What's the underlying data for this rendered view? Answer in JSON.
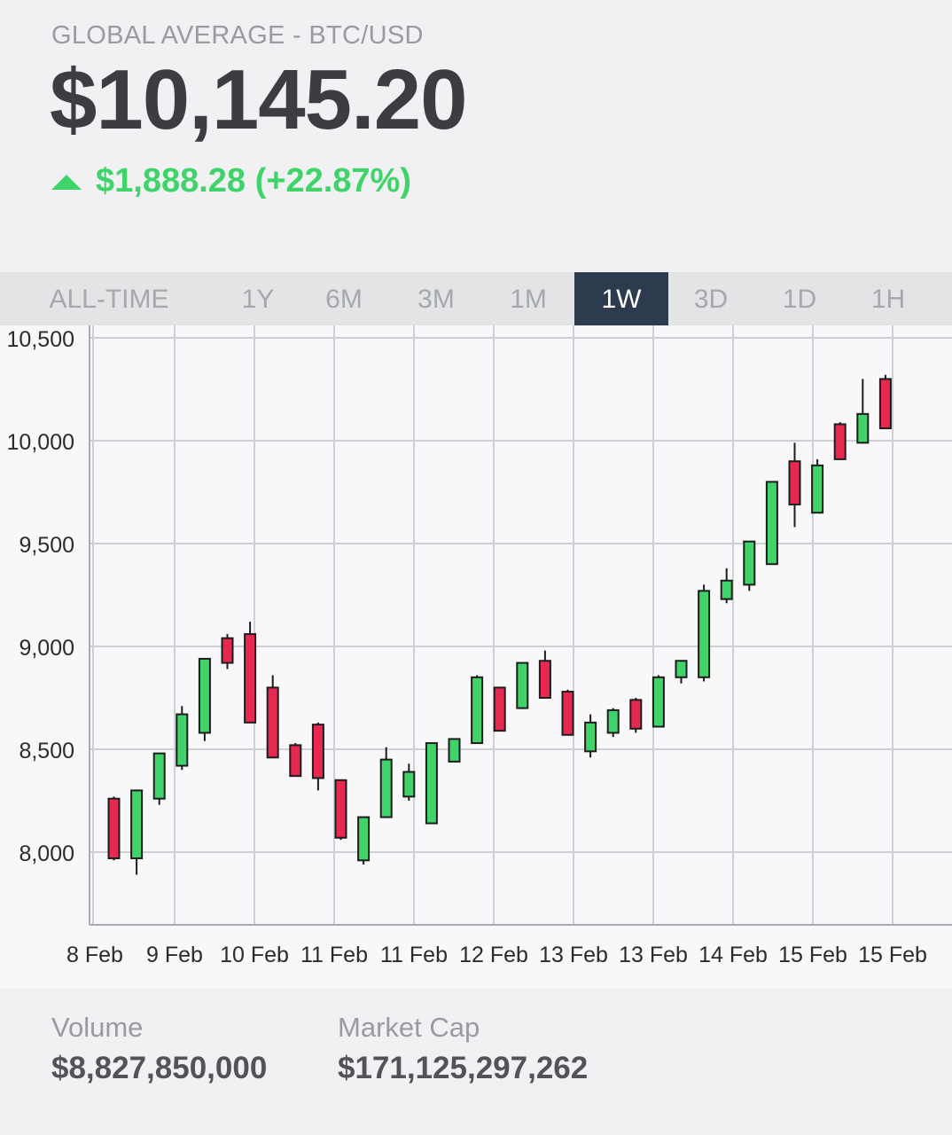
{
  "header": {
    "pair_label": "GLOBAL AVERAGE - BTC/USD",
    "price": "$10,145.20",
    "change": "$1,888.28 (+22.87%)",
    "change_color": "#3fd36a"
  },
  "tabs": [
    {
      "label": "ALL-TIME",
      "active": false
    },
    {
      "label": "1Y",
      "active": false
    },
    {
      "label": "6M",
      "active": false
    },
    {
      "label": "3M",
      "active": false
    },
    {
      "label": "1M",
      "active": false
    },
    {
      "label": "1W",
      "active": true
    },
    {
      "label": "3D",
      "active": false
    },
    {
      "label": "1D",
      "active": false
    },
    {
      "label": "1H",
      "active": false
    }
  ],
  "chart_data": {
    "type": "candlestick",
    "ylim": [
      7750,
      10550
    ],
    "yticks": [
      {
        "value": 8000,
        "label": "8,000"
      },
      {
        "value": 8500,
        "label": "8,500"
      },
      {
        "value": 9000,
        "label": "9,000"
      },
      {
        "value": 9500,
        "label": "9,500"
      },
      {
        "value": 10000,
        "label": "10,000"
      },
      {
        "value": 10500,
        "label": "10,500"
      }
    ],
    "xticks": [
      "8 Feb",
      "9 Feb",
      "10 Feb",
      "11 Feb",
      "11 Feb",
      "12 Feb",
      "13 Feb",
      "13 Feb",
      "14 Feb",
      "15 Feb",
      "15 Feb"
    ],
    "grid": true,
    "up_color": "#3fd36a",
    "down_color": "#e8294f",
    "candles": [
      {
        "open": 8260,
        "close": 7970,
        "high": 8270,
        "low": 7960
      },
      {
        "open": 7970,
        "close": 8300,
        "high": 8300,
        "low": 7890
      },
      {
        "open": 8260,
        "close": 8480,
        "high": 8480,
        "low": 8230
      },
      {
        "open": 8420,
        "close": 8670,
        "high": 8710,
        "low": 8400
      },
      {
        "open": 8580,
        "close": 8940,
        "high": 8940,
        "low": 8540
      },
      {
        "open": 9040,
        "close": 8920,
        "high": 9060,
        "low": 8890
      },
      {
        "open": 9060,
        "close": 8630,
        "high": 9120,
        "low": 8630
      },
      {
        "open": 8800,
        "close": 8460,
        "high": 8860,
        "low": 8460
      },
      {
        "open": 8520,
        "close": 8370,
        "high": 8530,
        "low": 8370
      },
      {
        "open": 8620,
        "close": 8360,
        "high": 8630,
        "low": 8300
      },
      {
        "open": 8350,
        "close": 8070,
        "high": 8350,
        "low": 8060
      },
      {
        "open": 7960,
        "close": 8170,
        "high": 8170,
        "low": 7940
      },
      {
        "open": 8170,
        "close": 8450,
        "high": 8510,
        "low": 8170
      },
      {
        "open": 8270,
        "close": 8390,
        "high": 8430,
        "low": 8250
      },
      {
        "open": 8140,
        "close": 8530,
        "high": 8530,
        "low": 8140
      },
      {
        "open": 8440,
        "close": 8550,
        "high": 8550,
        "low": 8440
      },
      {
        "open": 8530,
        "close": 8850,
        "high": 8860,
        "low": 8530
      },
      {
        "open": 8800,
        "close": 8590,
        "high": 8800,
        "low": 8590
      },
      {
        "open": 8700,
        "close": 8920,
        "high": 8920,
        "low": 8700
      },
      {
        "open": 8930,
        "close": 8750,
        "high": 8980,
        "low": 8750
      },
      {
        "open": 8780,
        "close": 8570,
        "high": 8790,
        "low": 8570
      },
      {
        "open": 8490,
        "close": 8630,
        "high": 8670,
        "low": 8460
      },
      {
        "open": 8580,
        "close": 8690,
        "high": 8700,
        "low": 8560
      },
      {
        "open": 8740,
        "close": 8600,
        "high": 8750,
        "low": 8580
      },
      {
        "open": 8610,
        "close": 8850,
        "high": 8860,
        "low": 8610
      },
      {
        "open": 8850,
        "close": 8930,
        "high": 8930,
        "low": 8820
      },
      {
        "open": 8850,
        "close": 9270,
        "high": 9300,
        "low": 8830
      },
      {
        "open": 9230,
        "close": 9320,
        "high": 9380,
        "low": 9210
      },
      {
        "open": 9300,
        "close": 9510,
        "high": 9510,
        "low": 9270
      },
      {
        "open": 9400,
        "close": 9800,
        "high": 9800,
        "low": 9400
      },
      {
        "open": 9900,
        "close": 9690,
        "high": 9990,
        "low": 9580
      },
      {
        "open": 9650,
        "close": 9880,
        "high": 9910,
        "low": 9650
      },
      {
        "open": 10080,
        "close": 9910,
        "high": 10090,
        "low": 9910
      },
      {
        "open": 9990,
        "close": 10130,
        "high": 10300,
        "low": 9990
      },
      {
        "open": 10300,
        "close": 10060,
        "high": 10320,
        "low": 10060
      }
    ]
  },
  "footer": {
    "volume_label": "Volume",
    "volume_value": "$8,827,850,000",
    "marketcap_label": "Market Cap",
    "marketcap_value": "$171,125,297,262"
  }
}
